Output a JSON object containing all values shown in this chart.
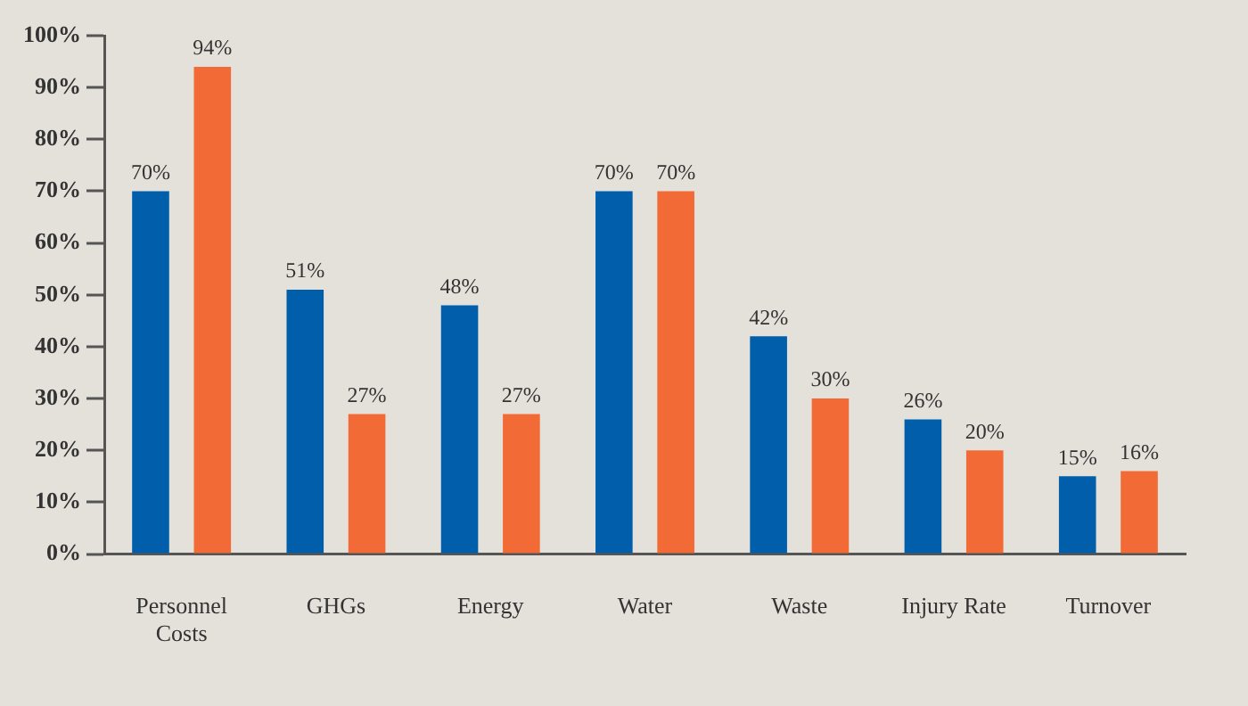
{
  "chart_data": {
    "type": "bar",
    "categories": [
      [
        "Personnel",
        "Costs"
      ],
      "GHGs",
      "Energy",
      "Water",
      "Waste",
      "Injury Rate",
      "Turnover"
    ],
    "series": [
      {
        "color": "#005eaa",
        "values": [
          70,
          51,
          48,
          70,
          42,
          26,
          15
        ],
        "value_labels": [
          "70%",
          "51%",
          "48%",
          "70%",
          "42%",
          "26%",
          "15%"
        ]
      },
      {
        "color": "#f26a35",
        "values": [
          94,
          27,
          27,
          70,
          30,
          20,
          16
        ],
        "value_labels": [
          "94%",
          "27%",
          "27%",
          "70%",
          "30%",
          "20%",
          "16%"
        ]
      }
    ],
    "ylim": [
      0,
      100
    ],
    "yticks": [
      {
        "value": 0,
        "label": "0%"
      },
      {
        "value": 10,
        "label": "10%"
      },
      {
        "value": 20,
        "label": "20%"
      },
      {
        "value": 30,
        "label": "30%"
      },
      {
        "value": 40,
        "label": "40%"
      },
      {
        "value": 50,
        "label": "50%"
      },
      {
        "value": 60,
        "label": "60%"
      },
      {
        "value": 70,
        "label": "70%"
      },
      {
        "value": 80,
        "label": "80%"
      },
      {
        "value": 90,
        "label": "90%"
      },
      {
        "value": 100,
        "label": "100%"
      }
    ],
    "grid": false,
    "legend": false
  }
}
